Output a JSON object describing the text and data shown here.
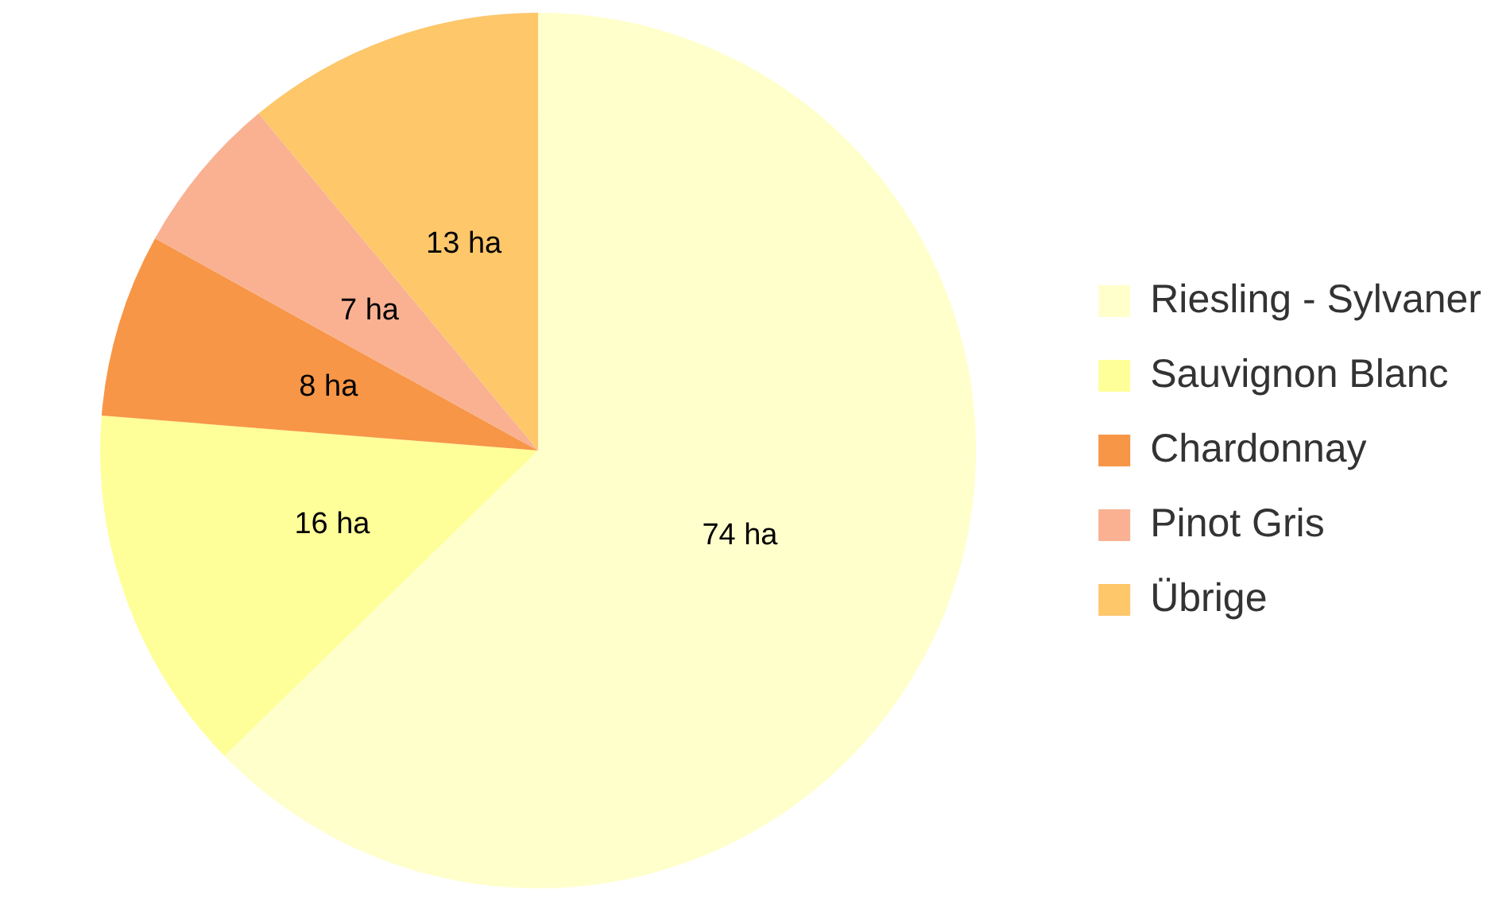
{
  "chart_data": {
    "type": "pie",
    "categories": [
      "Riesling - Sylvaner",
      "Sauvignon Blanc",
      "Chardonnay",
      "Pinot Gris",
      "Übrige"
    ],
    "values": [
      74,
      16,
      8,
      7,
      13
    ],
    "colors": [
      "#ffffcc",
      "#ffff99",
      "#f79646",
      "#f9b192",
      "#fdc76a"
    ],
    "value_labels": [
      "74 ha",
      "16 ha",
      "8 ha",
      "7 ha",
      "13 ha"
    ],
    "legend": "right"
  }
}
